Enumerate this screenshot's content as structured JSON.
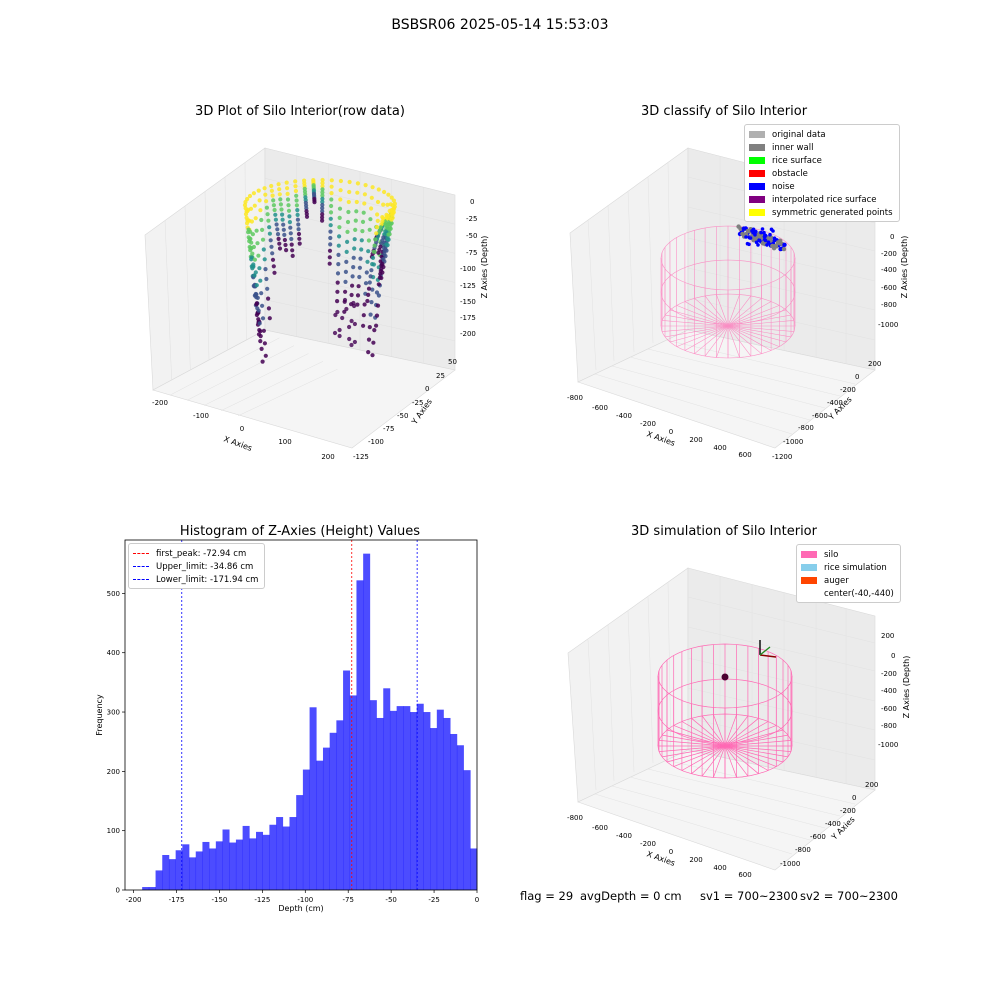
{
  "figure": {
    "suptitle": "BSBSR06 2025-05-14 15:53:03"
  },
  "panels": {
    "raw": {
      "title": "3D Plot of Silo Interior(row data)",
      "xlabel": "X Axies",
      "ylabel": "Y Axies",
      "zlabel": "Z Axies (Depth)",
      "xticks": [
        "-200",
        "-100",
        "0",
        "100",
        "200"
      ],
      "yticks": [
        "50",
        "25",
        "0",
        "-25",
        "-50",
        "-75",
        "-100",
        "-125"
      ],
      "zticks": [
        "0",
        "-25",
        "-50",
        "-75",
        "-100",
        "-125",
        "-150",
        "-175",
        "-200"
      ],
      "colormap": [
        "#440154",
        "#3b528b",
        "#21918c",
        "#5ec962",
        "#fde725"
      ]
    },
    "classify": {
      "title": "3D classify of Silo Interior",
      "xlabel": "X Axies",
      "ylabel": "Y Axies",
      "zlabel": "Z Axies (Depth)",
      "xticks": [
        "-800",
        "-600",
        "-400",
        "-200",
        "0",
        "200",
        "400",
        "600"
      ],
      "yticks": [
        "200",
        "0",
        "-200",
        "-400",
        "-600",
        "-800",
        "-1000",
        "-1200"
      ],
      "zticks": [
        "200",
        "0",
        "-200",
        "-400",
        "-600",
        "-800",
        "-1000"
      ],
      "legend": [
        {
          "label": "original data",
          "color": "#b0b0b0"
        },
        {
          "label": "inner wall",
          "color": "#808080"
        },
        {
          "label": "rice surface",
          "color": "#00ff00"
        },
        {
          "label": "obstacle",
          "color": "#ff0000"
        },
        {
          "label": "noise",
          "color": "#0000ff"
        },
        {
          "label": "interpolated rice surface",
          "color": "#800080"
        },
        {
          "label": "symmetric generated points",
          "color": "#ffff00"
        }
      ],
      "silo_color": "#ff69b4"
    },
    "simulation": {
      "title": "3D simulation of Silo Interior",
      "xlabel": "X Axies",
      "ylabel": "Y Axies",
      "zlabel": "Z Axies (Depth)",
      "xticks": [
        "-800",
        "-600",
        "-400",
        "-200",
        "0",
        "200",
        "400",
        "600"
      ],
      "yticks": [
        "200",
        "0",
        "-200",
        "-400",
        "-600",
        "-800",
        "-1000"
      ],
      "zticks": [
        "200",
        "0",
        "-200",
        "-400",
        "-600",
        "-800",
        "-1000"
      ],
      "legend": [
        {
          "label": "silo",
          "color": "#ff69b4"
        },
        {
          "label": "rice simulation",
          "color": "#87ceeb"
        },
        {
          "label": "auger",
          "color": "#ff4500"
        },
        {
          "label": "center(-40,-440)",
          "color": ""
        }
      ]
    }
  },
  "chart_data": {
    "type": "bar",
    "title": "Histogram of Z-Axies (Height) Values",
    "xlabel": "Depth (cm)",
    "ylabel": "Frequency",
    "xlim": [
      -205,
      0
    ],
    "ylim": [
      0,
      590
    ],
    "xticks": [
      -200,
      -175,
      -150,
      -125,
      -100,
      -75,
      -50,
      -25,
      0
    ],
    "yticks": [
      0,
      100,
      200,
      300,
      400,
      500
    ],
    "bar_color": "#0000ff",
    "bin_start": -195,
    "bin_width": 3.9,
    "values": [
      5,
      5,
      33,
      59,
      52,
      67,
      77,
      55,
      65,
      81,
      70,
      82,
      102,
      80,
      85,
      108,
      87,
      98,
      93,
      110,
      123,
      107,
      123,
      160,
      203,
      308,
      218,
      240,
      265,
      286,
      370,
      328,
      522,
      567,
      320,
      290,
      340,
      302,
      310,
      310,
      300,
      314,
      300,
      273,
      304,
      290,
      263,
      244,
      202,
      70
    ],
    "lines": [
      {
        "label": "first_peak: -72.94 cm",
        "x": -72.94,
        "color": "#ff0000"
      },
      {
        "label": "Upper_limit: -34.86 cm",
        "x": -34.86,
        "color": "#0000ff"
      },
      {
        "label": "Lower_limit: -171.94 cm",
        "x": -171.94,
        "color": "#0000ff"
      }
    ],
    "legend_position": "upper left"
  },
  "status": {
    "flag": "flag = 29",
    "avg_depth": "avgDepth = 0 cm",
    "sv1": "sv1 = 700~2300",
    "sv2": "sv2 = 700~2300"
  }
}
